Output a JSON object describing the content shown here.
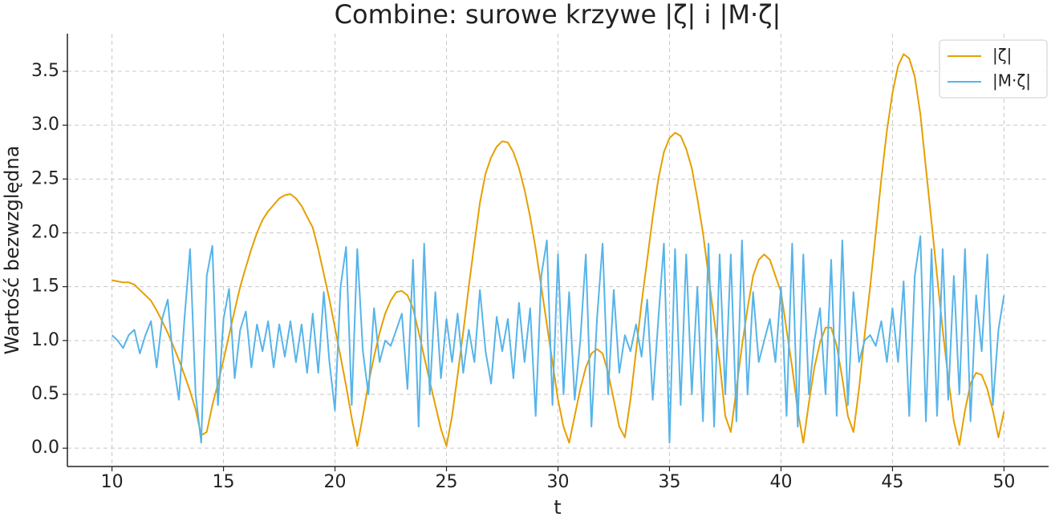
{
  "chart_data": {
    "type": "line",
    "title": "Combine: surowe krzywe |ζ| i |M·ζ|",
    "x_label": "t",
    "y_label": "Wartość bezwzględna",
    "x": [
      10,
      10.25,
      10.5,
      10.75,
      11,
      11.25,
      11.5,
      11.75,
      12,
      12.25,
      12.5,
      12.75,
      13,
      13.25,
      13.5,
      13.75,
      14,
      14.25,
      14.5,
      14.75,
      15,
      15.25,
      15.5,
      15.75,
      16,
      16.25,
      16.5,
      16.75,
      17,
      17.25,
      17.5,
      17.75,
      18,
      18.25,
      18.5,
      18.75,
      19,
      19.25,
      19.5,
      19.75,
      20,
      20.25,
      20.5,
      20.75,
      21,
      21.25,
      21.5,
      21.75,
      22,
      22.25,
      22.5,
      22.75,
      23,
      23.25,
      23.5,
      23.75,
      24,
      24.25,
      24.5,
      24.75,
      25,
      25.25,
      25.5,
      25.75,
      26,
      26.25,
      26.5,
      26.75,
      27,
      27.25,
      27.5,
      27.75,
      28,
      28.25,
      28.5,
      28.75,
      29,
      29.25,
      29.5,
      29.75,
      30,
      30.25,
      30.5,
      30.75,
      31,
      31.25,
      31.5,
      31.75,
      32,
      32.25,
      32.5,
      32.75,
      33,
      33.25,
      33.5,
      33.75,
      34,
      34.25,
      34.5,
      34.75,
      35,
      35.25,
      35.5,
      35.75,
      36,
      36.25,
      36.5,
      36.75,
      37,
      37.25,
      37.5,
      37.75,
      38,
      38.25,
      38.5,
      38.75,
      39,
      39.25,
      39.5,
      39.75,
      40,
      40.25,
      40.5,
      40.75,
      41,
      41.25,
      41.5,
      41.75,
      42,
      42.25,
      42.5,
      42.75,
      43,
      43.25,
      43.5,
      43.75,
      44,
      44.25,
      44.5,
      44.75,
      45,
      45.25,
      45.5,
      45.75,
      46,
      46.25,
      46.5,
      46.75,
      47,
      47.25,
      47.5,
      47.75,
      48,
      48.25,
      48.5,
      48.75,
      49,
      49.25,
      49.5,
      49.75,
      50
    ],
    "series": [
      {
        "name": "|ζ|",
        "color": "#E69F00",
        "values": [
          1.56,
          1.55,
          1.54,
          1.54,
          1.52,
          1.47,
          1.42,
          1.37,
          1.28,
          1.18,
          1.07,
          0.95,
          0.82,
          0.68,
          0.53,
          0.36,
          0.12,
          0.15,
          0.4,
          0.6,
          0.82,
          1.05,
          1.28,
          1.5,
          1.68,
          1.85,
          2.0,
          2.12,
          2.2,
          2.26,
          2.32,
          2.35,
          2.36,
          2.32,
          2.25,
          2.15,
          2.05,
          1.85,
          1.62,
          1.38,
          1.12,
          0.85,
          0.58,
          0.28,
          0.02,
          0.3,
          0.6,
          0.85,
          1.07,
          1.25,
          1.37,
          1.45,
          1.46,
          1.42,
          1.3,
          1.08,
          0.85,
          0.62,
          0.4,
          0.18,
          0.02,
          0.3,
          0.68,
          1.08,
          1.5,
          1.9,
          2.28,
          2.55,
          2.7,
          2.8,
          2.85,
          2.84,
          2.75,
          2.6,
          2.4,
          2.15,
          1.85,
          1.5,
          1.15,
          0.8,
          0.45,
          0.2,
          0.05,
          0.3,
          0.55,
          0.75,
          0.88,
          0.92,
          0.88,
          0.7,
          0.45,
          0.2,
          0.1,
          0.45,
          0.9,
          1.35,
          1.75,
          2.15,
          2.5,
          2.75,
          2.88,
          2.93,
          2.9,
          2.78,
          2.6,
          2.32,
          2.0,
          1.6,
          1.2,
          0.8,
          0.3,
          0.15,
          0.55,
          0.95,
          1.3,
          1.6,
          1.75,
          1.8,
          1.75,
          1.6,
          1.45,
          1.1,
          0.75,
          0.35,
          0.05,
          0.42,
          0.75,
          0.98,
          1.12,
          1.12,
          0.95,
          0.65,
          0.3,
          0.15,
          0.55,
          1.05,
          1.5,
          2.0,
          2.5,
          2.95,
          3.3,
          3.55,
          3.66,
          3.62,
          3.45,
          3.1,
          2.6,
          2.1,
          1.6,
          1.1,
          0.65,
          0.25,
          0.03,
          0.35,
          0.6,
          0.7,
          0.68,
          0.55,
          0.35,
          0.1,
          0.34
        ]
      },
      {
        "name": "|M·ζ|",
        "color": "#56B4E9",
        "values": [
          1.05,
          1.0,
          0.93,
          1.05,
          1.1,
          0.88,
          1.05,
          1.18,
          0.75,
          1.2,
          1.38,
          0.8,
          0.45,
          1.2,
          1.85,
          0.5,
          0.05,
          1.6,
          1.88,
          0.4,
          1.2,
          1.48,
          0.65,
          1.1,
          1.27,
          0.75,
          1.15,
          0.9,
          1.18,
          0.75,
          1.15,
          0.85,
          1.18,
          0.8,
          1.15,
          0.7,
          1.25,
          0.7,
          1.45,
          0.8,
          0.35,
          1.5,
          1.87,
          0.4,
          1.85,
          0.9,
          0.5,
          1.3,
          0.8,
          1.0,
          0.95,
          1.1,
          1.25,
          0.55,
          1.75,
          0.2,
          1.9,
          0.5,
          1.45,
          0.65,
          1.2,
          0.8,
          1.25,
          0.7,
          1.1,
          0.8,
          1.47,
          0.9,
          0.6,
          1.22,
          0.9,
          1.2,
          0.65,
          1.35,
          0.8,
          1.3,
          0.3,
          1.6,
          1.93,
          0.4,
          1.8,
          0.5,
          1.45,
          0.45,
          1.0,
          1.8,
          0.2,
          1.2,
          1.9,
          0.5,
          1.47,
          0.7,
          1.05,
          0.9,
          1.15,
          0.85,
          1.38,
          0.45,
          1.2,
          1.9,
          0.05,
          1.85,
          0.4,
          1.8,
          0.5,
          1.5,
          0.25,
          1.9,
          0.2,
          1.8,
          0.5,
          1.8,
          0.25,
          1.93,
          0.5,
          1.45,
          0.8,
          1.0,
          1.2,
          0.8,
          1.5,
          0.3,
          1.9,
          0.2,
          1.8,
          0.5,
          1.0,
          1.3,
          0.5,
          1.75,
          0.3,
          1.93,
          0.4,
          1.45,
          0.8,
          1.0,
          1.05,
          0.95,
          1.18,
          0.8,
          1.3,
          0.8,
          1.55,
          0.3,
          1.6,
          1.97,
          0.25,
          1.85,
          0.3,
          1.85,
          0.45,
          1.6,
          0.5,
          1.85,
          0.25,
          1.42,
          0.9,
          1.8,
          0.4,
          1.1,
          1.42
        ]
      }
    ],
    "xlim": [
      8,
      52
    ],
    "xticks": [
      10,
      15,
      20,
      25,
      30,
      35,
      40,
      45,
      50
    ],
    "ylim": [
      -0.17,
      3.85
    ],
    "yticks": [
      {
        "value": 0,
        "label": "0.0"
      },
      0.5,
      {
        "value": 1,
        "label": "1.0"
      },
      1.5,
      {
        "value": 2,
        "label": "2.0"
      },
      2.5,
      {
        "value": 3,
        "label": "3.0"
      },
      3.5
    ],
    "grid": true,
    "legend": "upper right"
  }
}
